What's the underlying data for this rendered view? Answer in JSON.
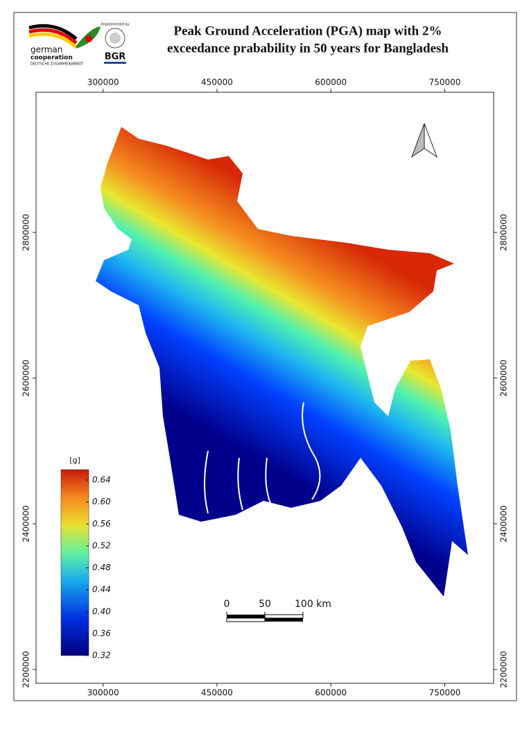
{
  "header": {
    "title": [
      "Peak Ground Acceleration (PGA) map with 2%",
      "exceedance prabability in 50 years for Bangladesh"
    ],
    "logos": {
      "giz": [
        "german",
        "cooperation",
        "DEUTSCHE ZUSAMMENARBEIT"
      ],
      "implemented": "Implemented by",
      "bgr": "BGR"
    }
  },
  "frame": {
    "xlim": [
      211700,
      814400
    ],
    "ylim": [
      2181000,
      2992400
    ],
    "xticks": [
      300000,
      450000,
      600000,
      750000
    ],
    "yticks": [
      2200000,
      2400000,
      2600000,
      2800000
    ]
  },
  "legend": {
    "unit": "[g]",
    "lim": [
      0.32,
      0.659
    ],
    "ticks": [
      0.32,
      0.36,
      {
        "value": 0.4,
        "label": "0.40"
      },
      0.44,
      0.48,
      0.52,
      0.56,
      {
        "value": 0.6,
        "label": "0.60"
      },
      0.64
    ]
  },
  "scale_bar": {
    "ticks": [
      0,
      50,
      {
        "value": 100,
        "label": "100 km"
      }
    ]
  }
}
